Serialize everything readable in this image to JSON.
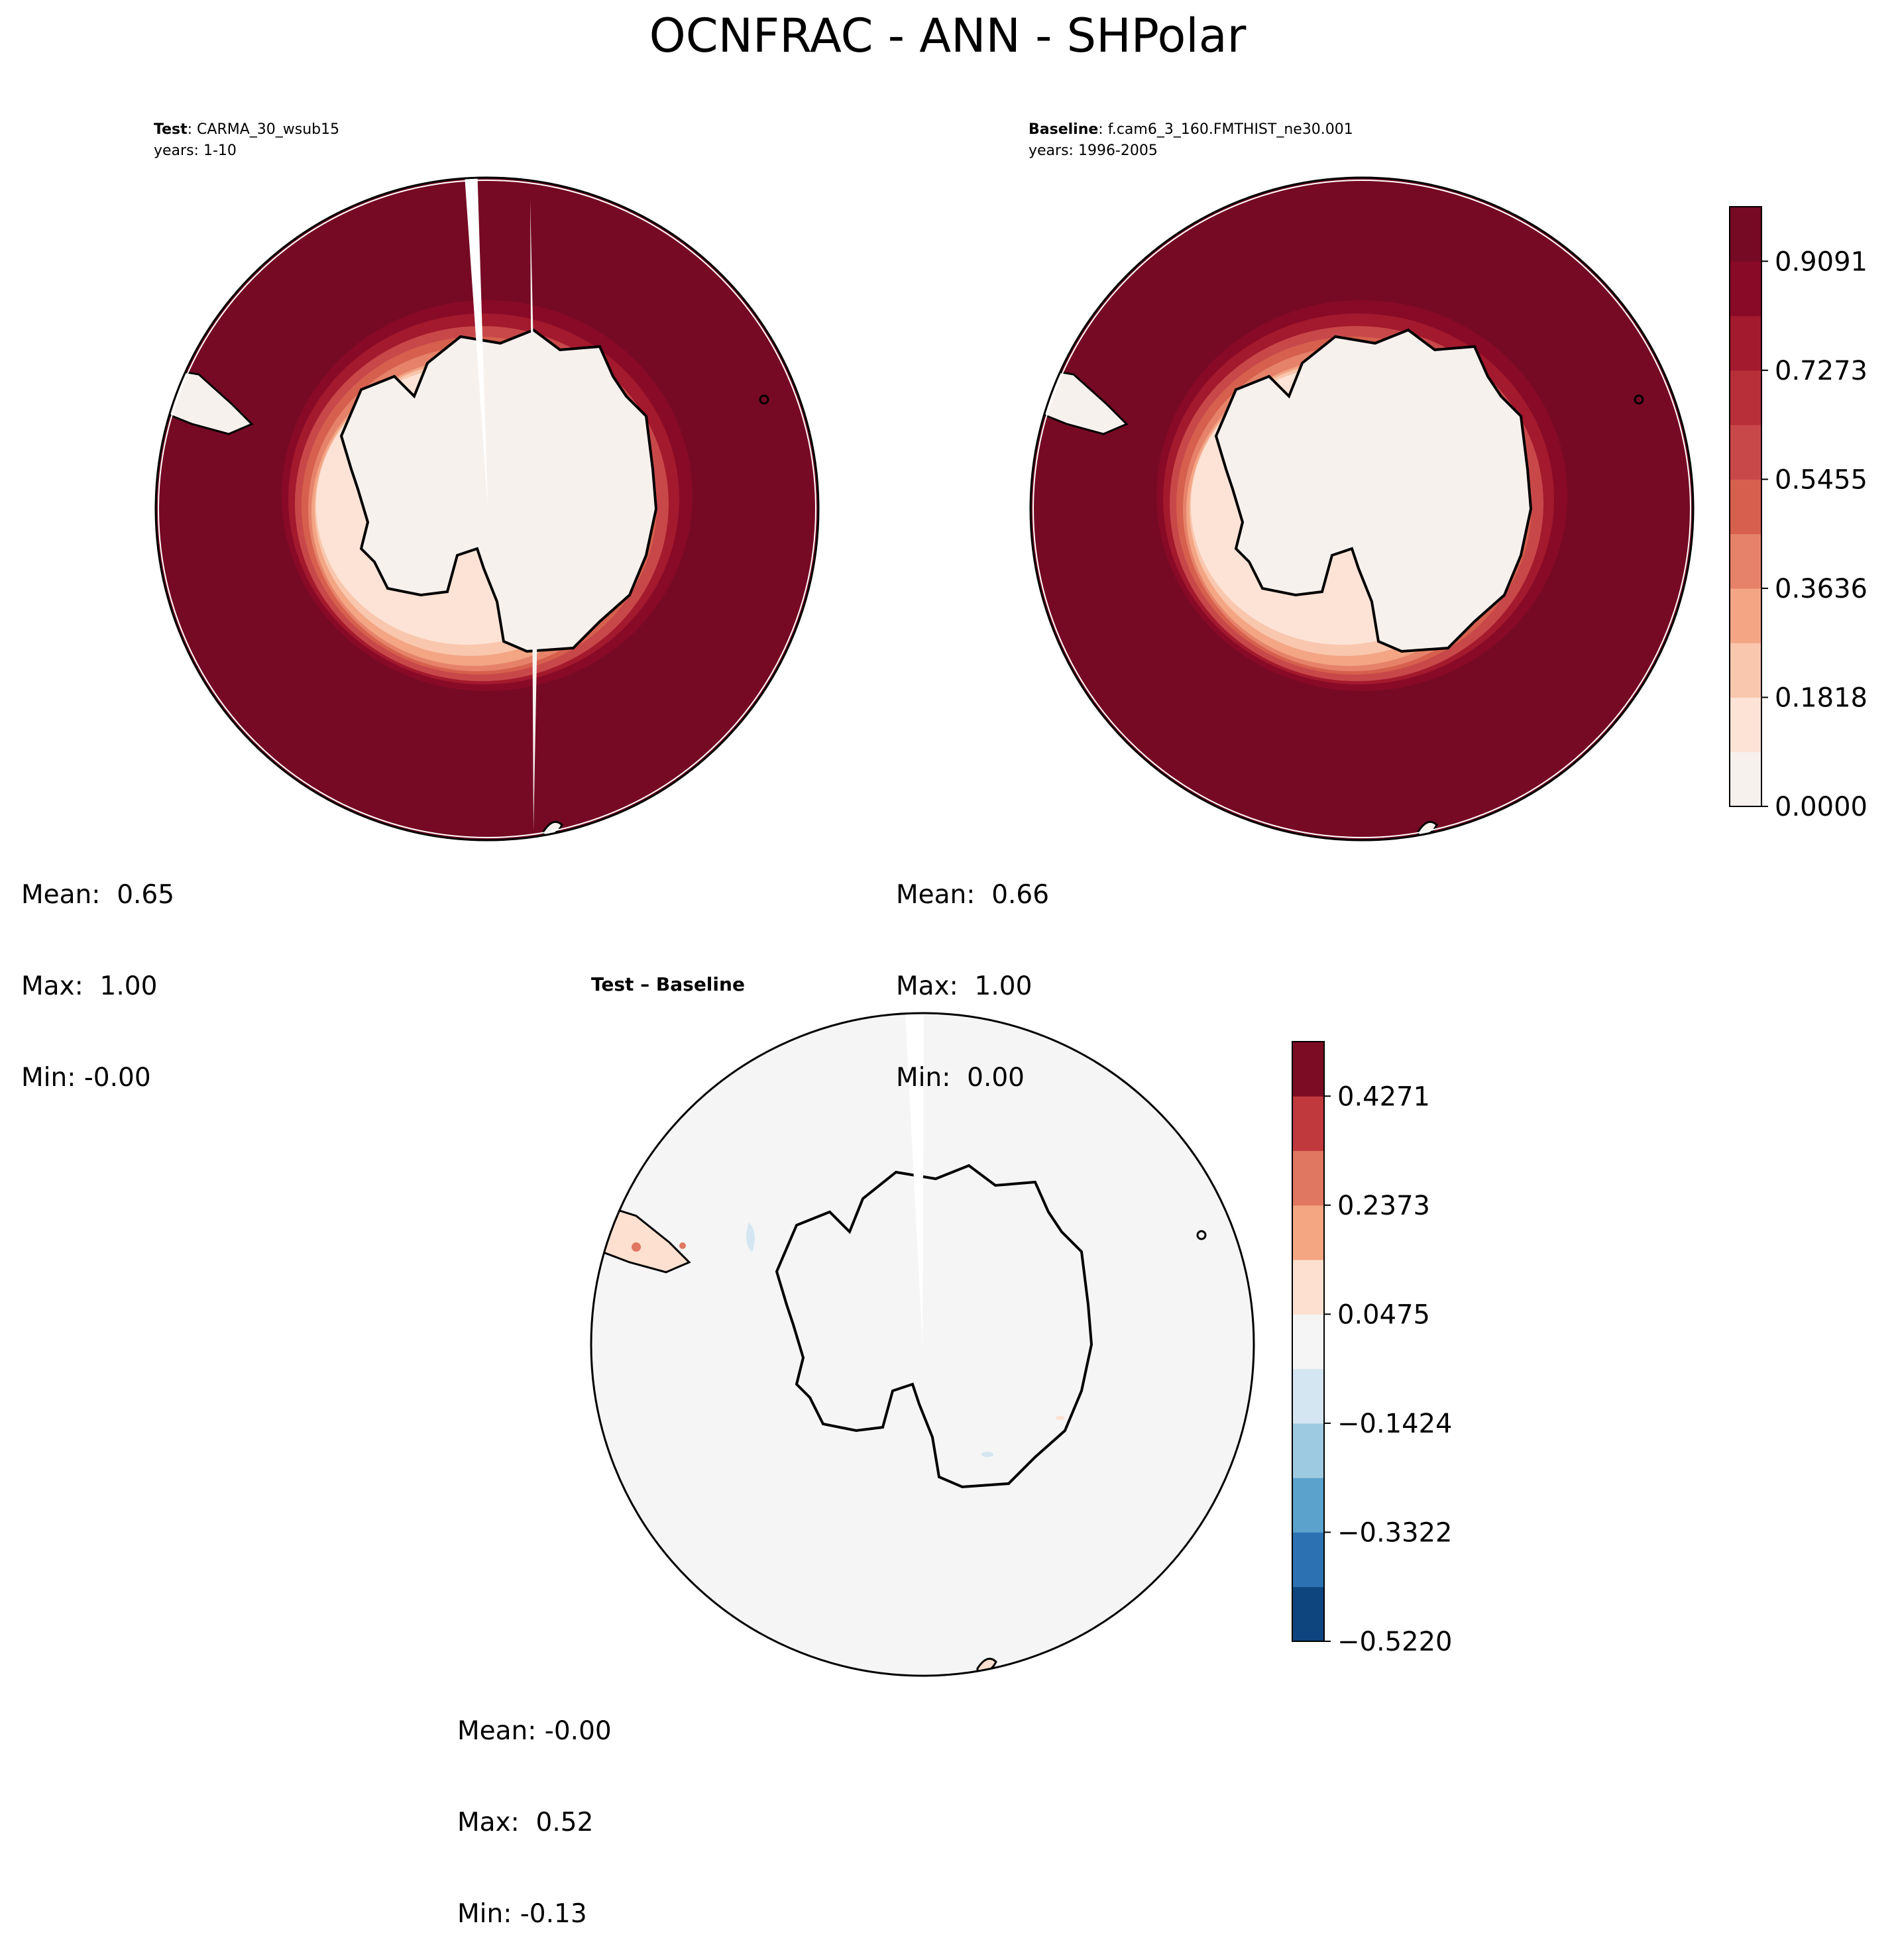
{
  "title": "OCNFRAC - ANN - SHPolar",
  "chart_data": [
    {
      "type": "heatmap",
      "projection": "south-polar-stereographic",
      "panel": "test",
      "label_bold": "Test",
      "label_rest": ": CARMA_30_wsub15",
      "years": "years: 1-10",
      "stats": {
        "mean": "Mean:  0.65",
        "max": "Max:  1.00",
        "min": "Min: -0.00"
      }
    },
    {
      "type": "heatmap",
      "projection": "south-polar-stereographic",
      "panel": "baseline",
      "label_bold": "Baseline",
      "label_rest": ": f.cam6_3_160.FMTHIST_ne30.001",
      "years": "years: 1996-2005",
      "stats": {
        "mean": "Mean:  0.66",
        "max": "Max:  1.00",
        "min": "Min:  0.00"
      },
      "colorbar": {
        "range": [
          0.0,
          1.0
        ],
        "levels": 11,
        "ticks": [
          "0.0000",
          "0.1818",
          "0.3636",
          "0.5455",
          "0.7273",
          "0.9091"
        ],
        "colors": [
          "#f7f1ee",
          "#fde3d6",
          "#f9c7ae",
          "#f3a584",
          "#e6826a",
          "#d6604d",
          "#c8484a",
          "#b82f39",
          "#a3192d",
          "#880a27",
          "#760a24"
        ]
      }
    },
    {
      "type": "heatmap",
      "projection": "south-polar-stereographic",
      "panel": "difference",
      "label_bold": "Test – Baseline",
      "stats": {
        "mean": "Mean: -0.00",
        "max": "Max:  0.52",
        "min": "Min: -0.13"
      },
      "colorbar": {
        "range": [
          -0.522,
          0.522
        ],
        "levels": 11,
        "ticks": [
          "−0.5220",
          "−0.3322",
          "−0.1424",
          "0.0475",
          "0.2373",
          "0.4271"
        ],
        "colors": [
          "#0f457f",
          "#2c72b3",
          "#5ba2cc",
          "#9ecae1",
          "#d4e6f1",
          "#f5f5f5",
          "#fde0cf",
          "#f4a582",
          "#e07760",
          "#c0393d",
          "#7c0c24"
        ]
      }
    }
  ]
}
